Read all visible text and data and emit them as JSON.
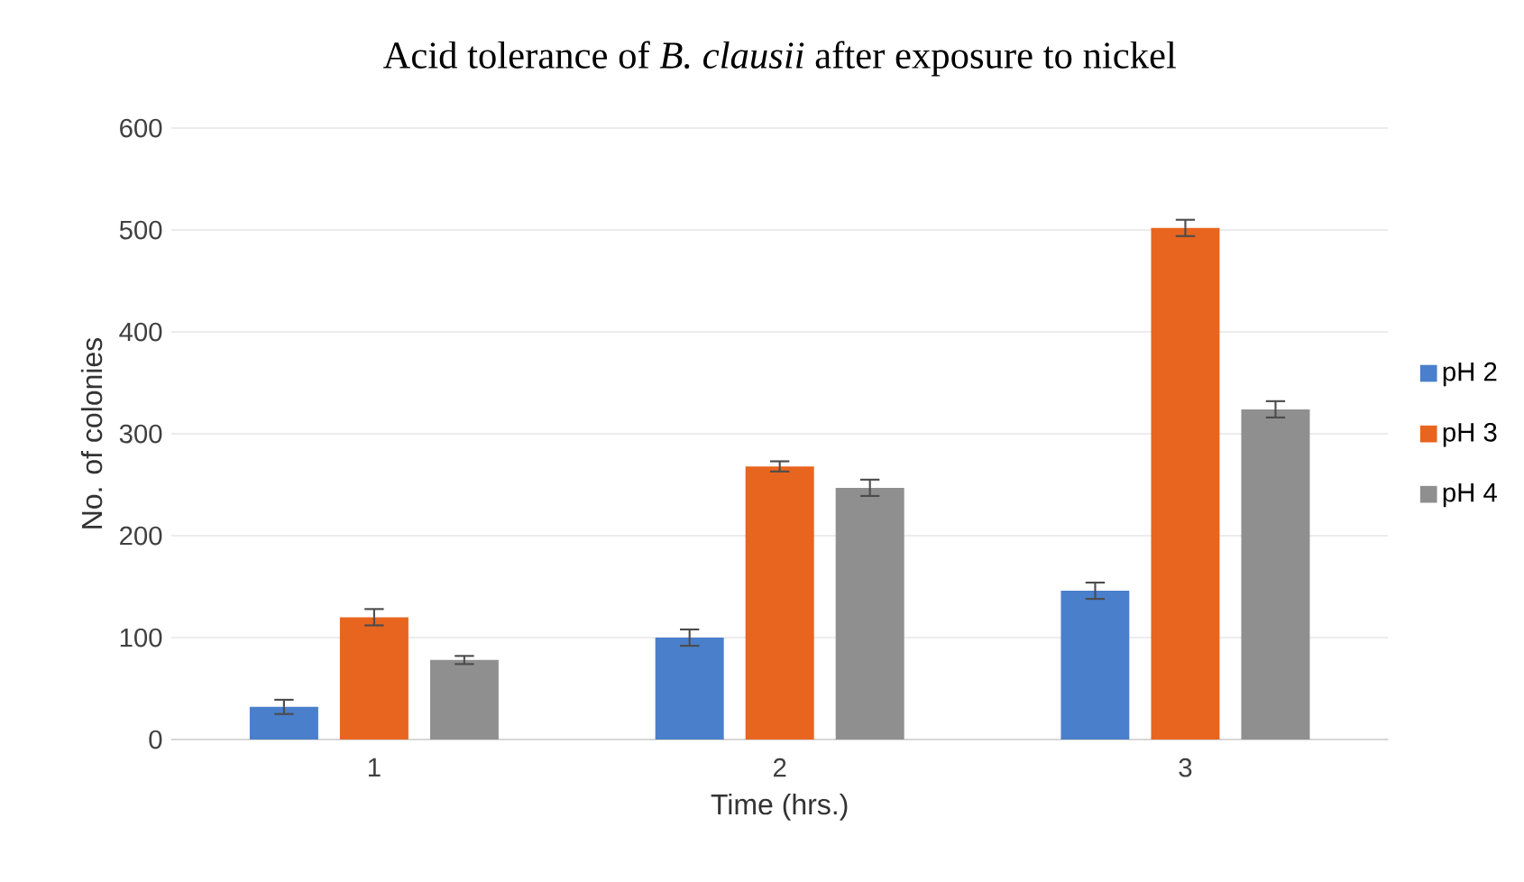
{
  "chart_data": {
    "type": "bar",
    "title": "Acid tolerance of *B. clausii* after exposure to nickel",
    "xlabel": "Time (hrs.)",
    "ylabel": "No. of colonies",
    "categories": [
      "1",
      "2",
      "3"
    ],
    "series": [
      {
        "name": "pH 2",
        "color": "#4a7fcb",
        "values": [
          32,
          100,
          146
        ],
        "errors": [
          7,
          8,
          8
        ]
      },
      {
        "name": "pH 3",
        "color": "#e8651f",
        "values": [
          120,
          268,
          502
        ],
        "errors": [
          8,
          5,
          8
        ]
      },
      {
        "name": "pH 4",
        "color": "#8f8f8f",
        "values": [
          78,
          247,
          324
        ],
        "errors": [
          4,
          8,
          8
        ]
      }
    ],
    "ylim": [
      0,
      600
    ],
    "yticks": [
      0,
      100,
      200,
      300,
      400,
      500,
      600
    ],
    "grid": "y",
    "legend": "right"
  }
}
